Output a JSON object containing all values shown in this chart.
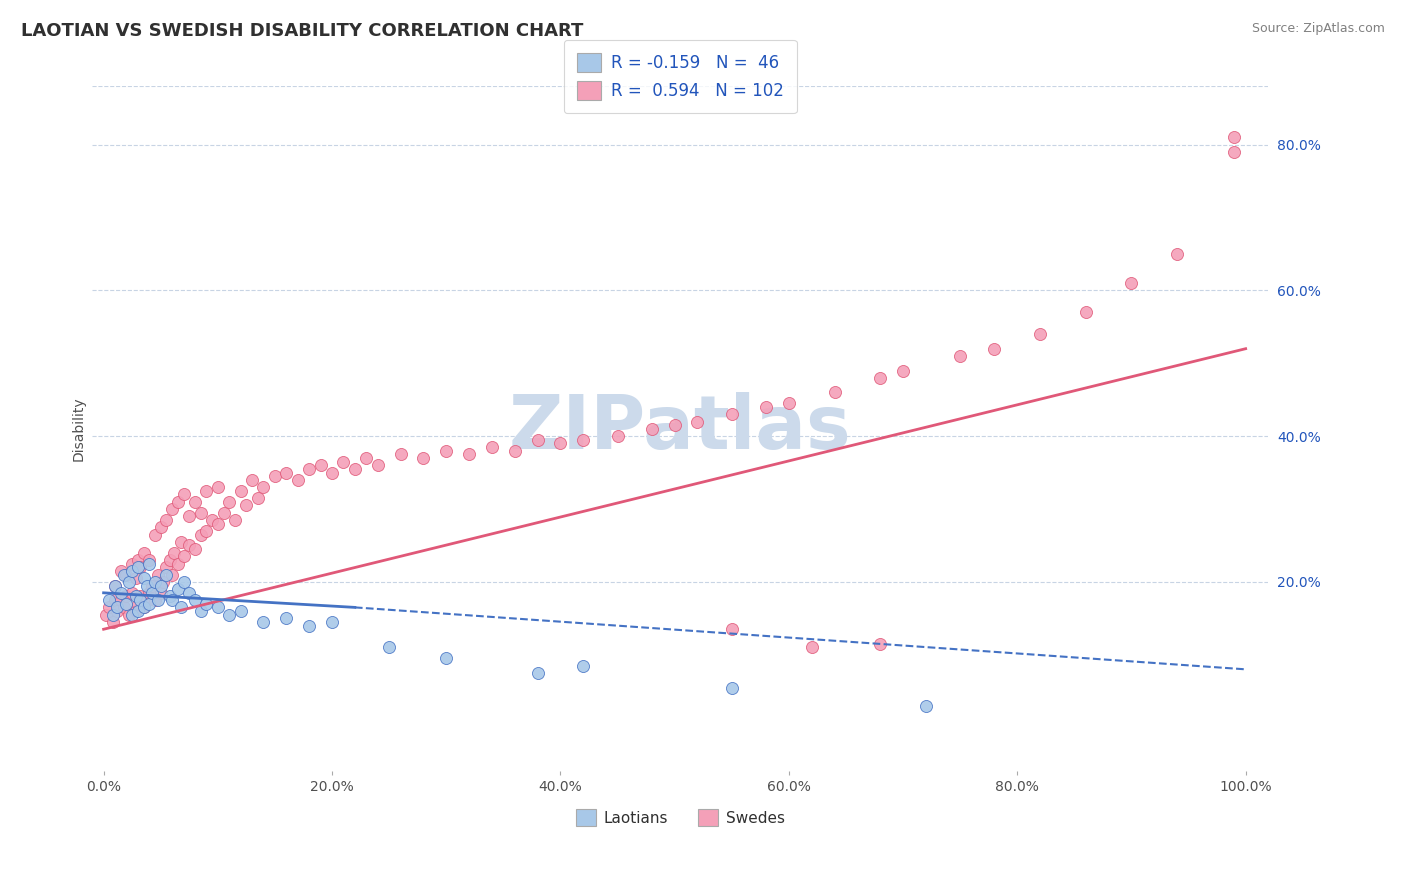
{
  "title": "LAOTIAN VS SWEDISH DISABILITY CORRELATION CHART",
  "source": "Source: ZipAtlas.com",
  "ylabel": "Disability",
  "xlim": [
    -0.01,
    1.02
  ],
  "ylim": [
    -0.06,
    0.88
  ],
  "xtick_labels": [
    "0.0%",
    "20.0%",
    "40.0%",
    "60.0%",
    "80.0%",
    "100.0%"
  ],
  "xtick_vals": [
    0.0,
    0.2,
    0.4,
    0.6,
    0.8,
    1.0
  ],
  "ytick_labels": [
    "20.0%",
    "40.0%",
    "60.0%",
    "80.0%"
  ],
  "ytick_vals": [
    0.2,
    0.4,
    0.6,
    0.8
  ],
  "legend_labels": [
    "Laotians",
    "Swedes"
  ],
  "r_laotian": -0.159,
  "n_laotian": 46,
  "r_swedish": 0.594,
  "n_swedish": 102,
  "color_laotian": "#a8c8e8",
  "color_swedish": "#f4a0b8",
  "color_line_laotian": "#4472c4",
  "color_line_swedish": "#e05878",
  "title_color": "#303030",
  "source_color": "#808080",
  "legend_text_color": "#2255bb",
  "watermark_color": "#ccdaeb",
  "grid_color": "#c8d4e4",
  "laotian_x": [
    0.005,
    0.008,
    0.01,
    0.012,
    0.015,
    0.018,
    0.02,
    0.022,
    0.025,
    0.025,
    0.028,
    0.03,
    0.03,
    0.032,
    0.035,
    0.035,
    0.038,
    0.04,
    0.04,
    0.042,
    0.045,
    0.048,
    0.05,
    0.055,
    0.058,
    0.06,
    0.065,
    0.068,
    0.07,
    0.075,
    0.08,
    0.085,
    0.09,
    0.1,
    0.11,
    0.12,
    0.14,
    0.16,
    0.18,
    0.2,
    0.25,
    0.3,
    0.38,
    0.42,
    0.55,
    0.72
  ],
  "laotian_y": [
    0.175,
    0.155,
    0.195,
    0.165,
    0.185,
    0.21,
    0.17,
    0.2,
    0.155,
    0.215,
    0.18,
    0.16,
    0.22,
    0.175,
    0.165,
    0.205,
    0.195,
    0.17,
    0.225,
    0.185,
    0.2,
    0.175,
    0.195,
    0.21,
    0.18,
    0.175,
    0.19,
    0.165,
    0.2,
    0.185,
    0.175,
    0.16,
    0.17,
    0.165,
    0.155,
    0.16,
    0.145,
    0.15,
    0.14,
    0.145,
    0.11,
    0.095,
    0.075,
    0.085,
    0.055,
    0.03
  ],
  "swedish_x": [
    0.002,
    0.005,
    0.008,
    0.01,
    0.01,
    0.012,
    0.015,
    0.015,
    0.018,
    0.02,
    0.02,
    0.022,
    0.025,
    0.025,
    0.028,
    0.028,
    0.03,
    0.03,
    0.032,
    0.032,
    0.035,
    0.035,
    0.038,
    0.04,
    0.04,
    0.042,
    0.045,
    0.045,
    0.048,
    0.05,
    0.05,
    0.052,
    0.055,
    0.055,
    0.058,
    0.06,
    0.06,
    0.062,
    0.065,
    0.065,
    0.068,
    0.07,
    0.07,
    0.075,
    0.075,
    0.08,
    0.08,
    0.085,
    0.085,
    0.09,
    0.09,
    0.095,
    0.1,
    0.1,
    0.105,
    0.11,
    0.115,
    0.12,
    0.125,
    0.13,
    0.135,
    0.14,
    0.15,
    0.16,
    0.17,
    0.18,
    0.19,
    0.2,
    0.21,
    0.22,
    0.23,
    0.24,
    0.26,
    0.28,
    0.3,
    0.32,
    0.34,
    0.36,
    0.38,
    0.4,
    0.42,
    0.45,
    0.48,
    0.5,
    0.52,
    0.55,
    0.58,
    0.6,
    0.64,
    0.68,
    0.7,
    0.75,
    0.78,
    0.82,
    0.86,
    0.9,
    0.94,
    0.55,
    0.62,
    0.68,
    0.99,
    0.99
  ],
  "swedish_y": [
    0.155,
    0.165,
    0.145,
    0.175,
    0.195,
    0.16,
    0.175,
    0.215,
    0.165,
    0.18,
    0.21,
    0.155,
    0.185,
    0.225,
    0.16,
    0.205,
    0.17,
    0.23,
    0.18,
    0.22,
    0.165,
    0.24,
    0.175,
    0.185,
    0.23,
    0.195,
    0.175,
    0.265,
    0.21,
    0.185,
    0.275,
    0.2,
    0.22,
    0.285,
    0.23,
    0.21,
    0.3,
    0.24,
    0.225,
    0.31,
    0.255,
    0.235,
    0.32,
    0.25,
    0.29,
    0.245,
    0.31,
    0.265,
    0.295,
    0.27,
    0.325,
    0.285,
    0.28,
    0.33,
    0.295,
    0.31,
    0.285,
    0.325,
    0.305,
    0.34,
    0.315,
    0.33,
    0.345,
    0.35,
    0.34,
    0.355,
    0.36,
    0.35,
    0.365,
    0.355,
    0.37,
    0.36,
    0.375,
    0.37,
    0.38,
    0.375,
    0.385,
    0.38,
    0.395,
    0.39,
    0.395,
    0.4,
    0.41,
    0.415,
    0.42,
    0.43,
    0.44,
    0.445,
    0.46,
    0.48,
    0.49,
    0.51,
    0.52,
    0.54,
    0.57,
    0.61,
    0.65,
    0.135,
    0.11,
    0.115,
    0.79,
    0.81
  ],
  "line_lao_x0": 0.0,
  "line_lao_y0": 0.185,
  "line_lao_x1": 0.22,
  "line_lao_y1": 0.165,
  "line_lao_dash_x0": 0.22,
  "line_lao_dash_y0": 0.165,
  "line_lao_dash_x1": 1.0,
  "line_lao_dash_y1": 0.08,
  "line_swe_x0": 0.0,
  "line_swe_y0": 0.135,
  "line_swe_x1": 1.0,
  "line_swe_y1": 0.52
}
